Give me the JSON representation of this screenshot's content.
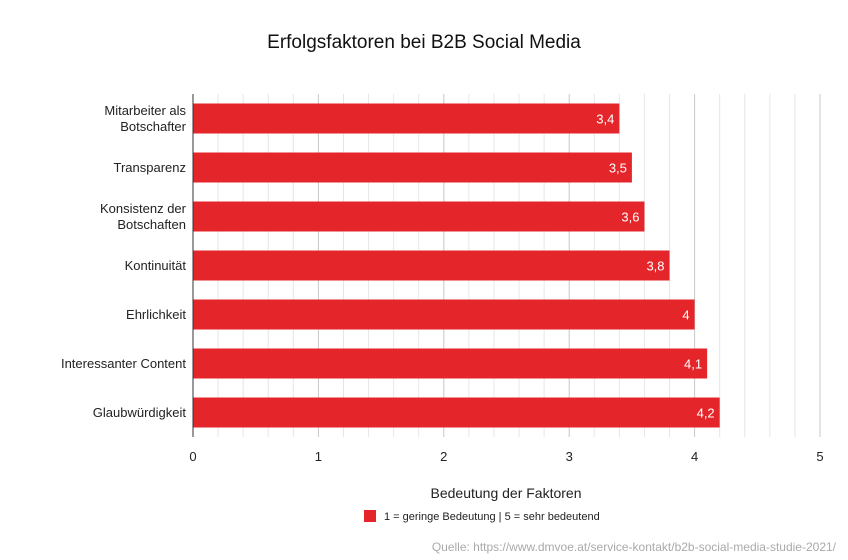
{
  "chart_data": {
    "type": "bar",
    "orientation": "horizontal",
    "title": "Erfolgsfaktoren bei B2B Social Media",
    "categories": [
      [
        "Mitarbeiter als",
        "Botschafter"
      ],
      [
        "Transparenz"
      ],
      [
        "Konsistenz der",
        "Botschaften"
      ],
      [
        "Kontinuität"
      ],
      [
        "Ehrlichkeit"
      ],
      [
        "Interessanter Content"
      ],
      [
        "Glaubwürdigkeit"
      ]
    ],
    "series": [
      {
        "name": "1 = geringe Bedeutung | 5 = sehr bedeutend",
        "values": [
          3.4,
          3.5,
          3.6,
          3.8,
          4.0,
          4.1,
          4.2
        ],
        "value_labels": [
          "3,4",
          "3,5",
          "3,6",
          "3,8",
          "4",
          "4,1",
          "4,2"
        ],
        "color": "#e4262a"
      }
    ],
    "xlabel": "Bedeutung der Faktoren",
    "ylabel": "",
    "xlim": [
      0,
      5
    ],
    "xticks": [
      "0",
      "1",
      "2",
      "3",
      "4",
      "5"
    ],
    "grid": "vertical",
    "legend_position": "bottom"
  },
  "source": "Quelle: https://www.dmvoe.at/service-kontakt/b2b-social-media-studie-2021/"
}
